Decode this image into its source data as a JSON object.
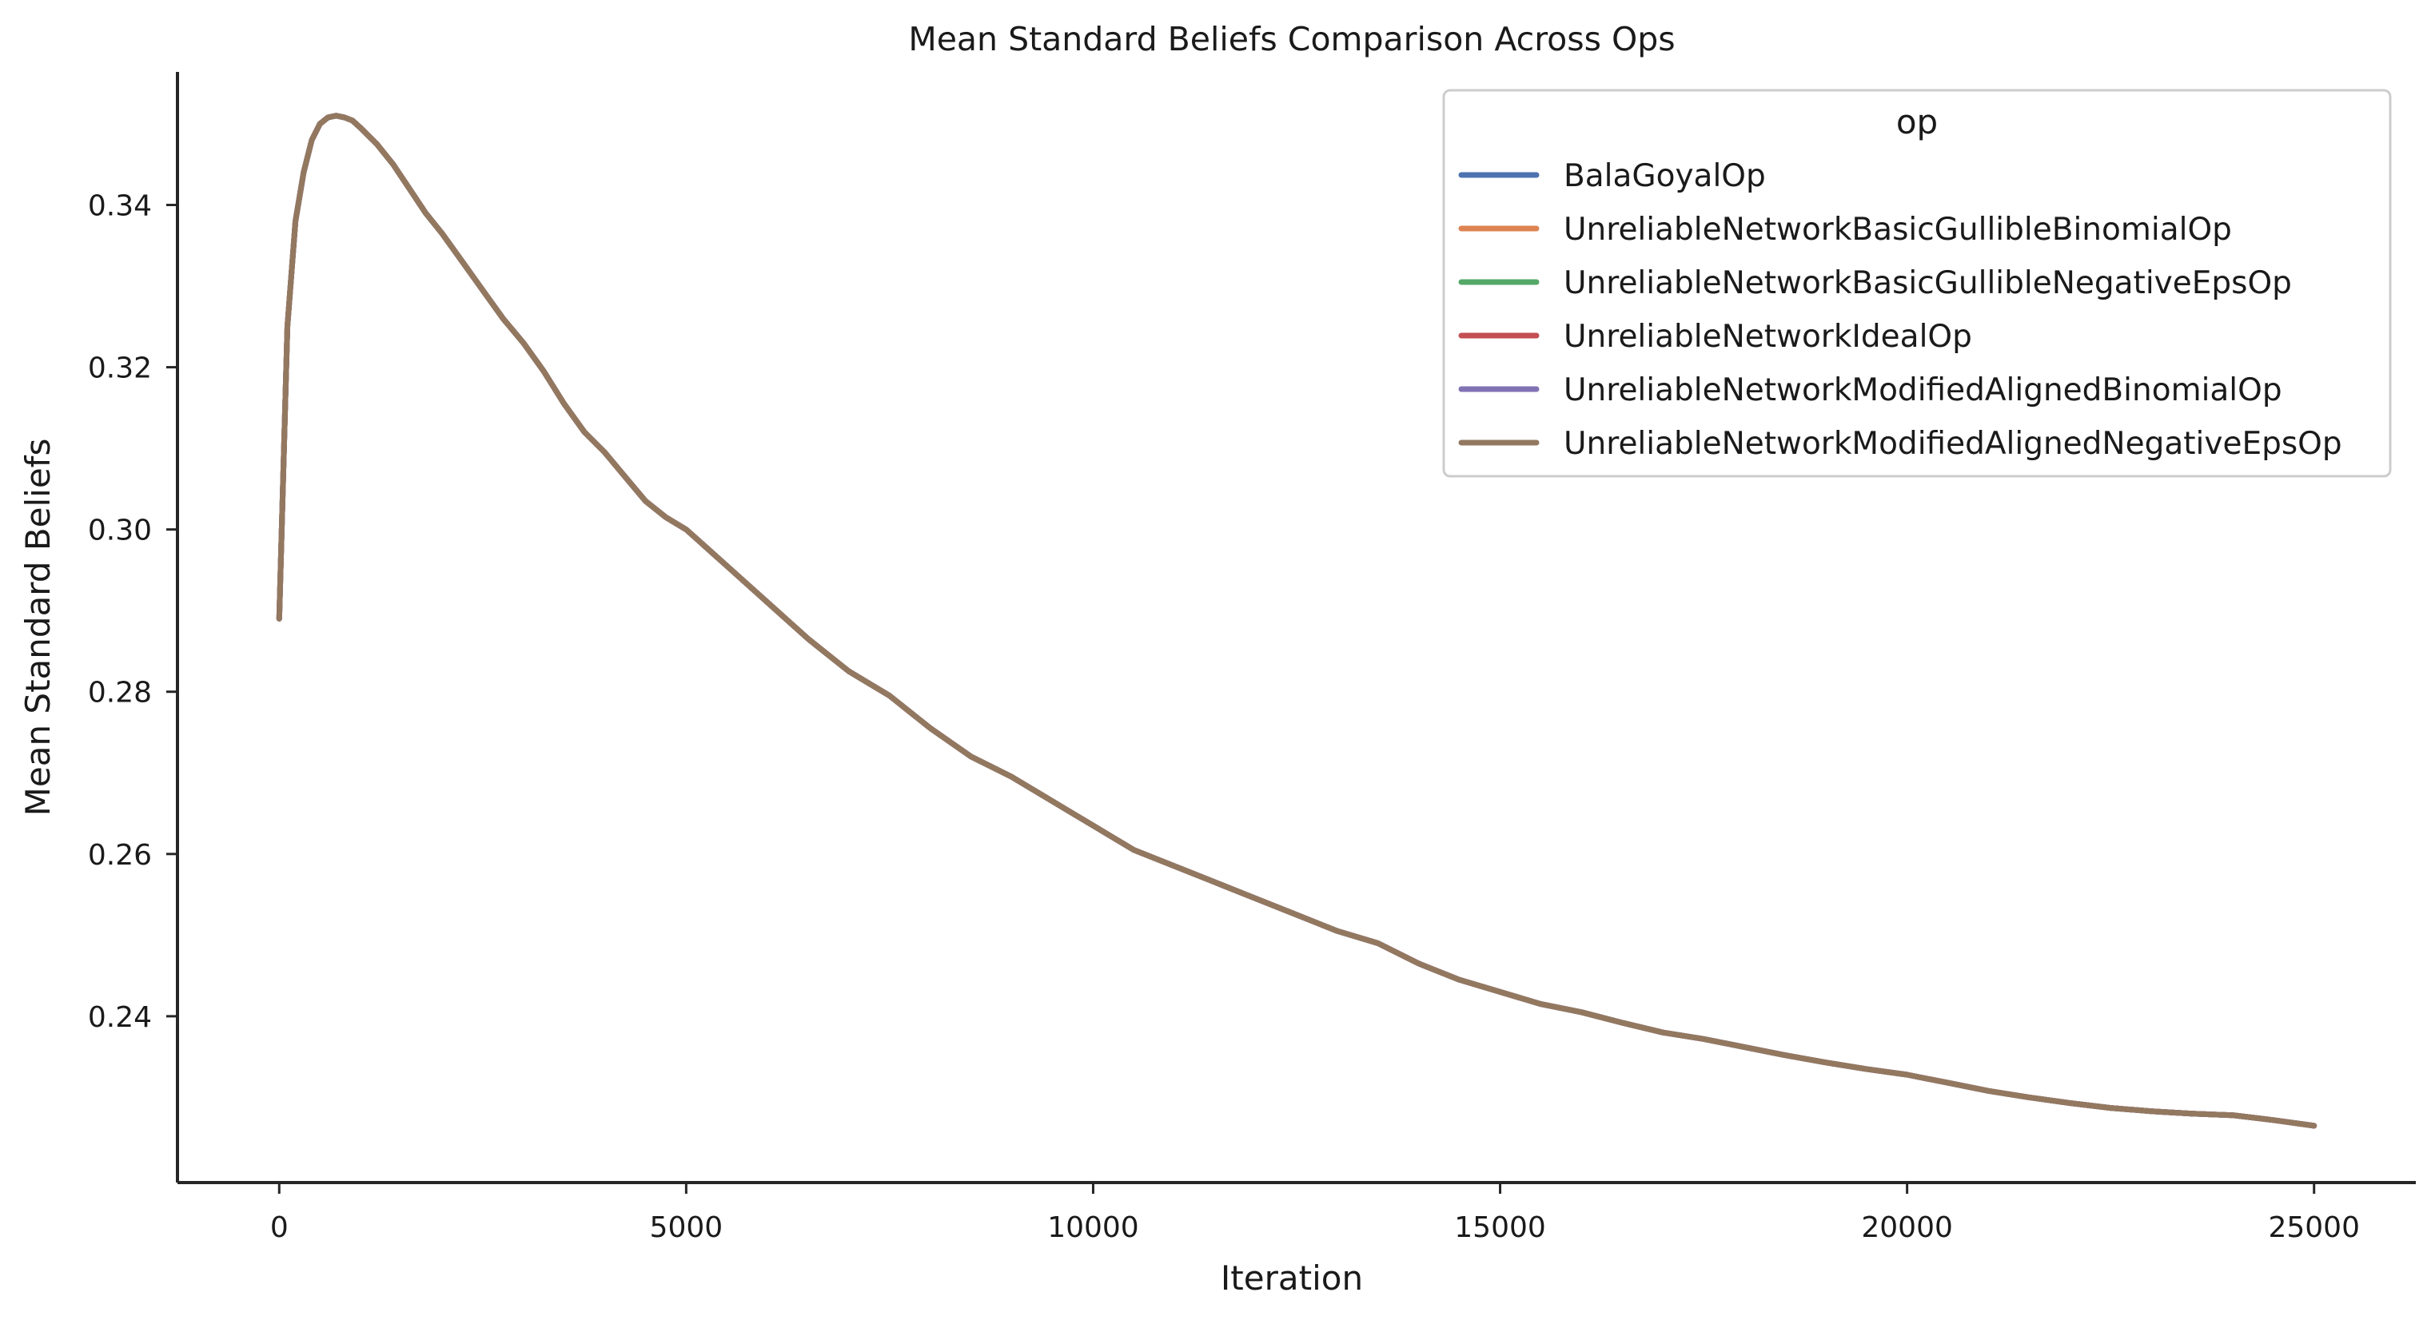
{
  "chart_data": {
    "type": "line",
    "title": "Mean Standard Beliefs Comparison Across Ops",
    "xlabel": "Iteration",
    "ylabel": "Mean Standard Beliefs",
    "xlim": [
      -1250,
      26250
    ],
    "ylim": [
      0.2195,
      0.3564
    ],
    "xticks": [
      0,
      5000,
      10000,
      15000,
      20000,
      25000
    ],
    "xtick_labels": [
      "0",
      "5000",
      "10000",
      "15000",
      "20000",
      "25000"
    ],
    "yticks": [
      0.24,
      0.26,
      0.28,
      0.3,
      0.32,
      0.34
    ],
    "ytick_labels": [
      "0.24",
      "0.26",
      "0.28",
      "0.30",
      "0.32",
      "0.34"
    ],
    "grid": false,
    "legend": {
      "title": "op",
      "placement": "top-right",
      "entries": [
        {
          "label": "BalaGoyalOp",
          "color": "#4c72b0"
        },
        {
          "label": "UnreliableNetworkBasicGullibleBinomialOp",
          "color": "#dd8452"
        },
        {
          "label": "UnreliableNetworkBasicGullibleNegativeEpsOp",
          "color": "#55a868"
        },
        {
          "label": "UnreliableNetworkIdealOp",
          "color": "#c44e52"
        },
        {
          "label": "UnreliableNetworkModifiedAlignedBinomialOp",
          "color": "#8172b3"
        },
        {
          "label": "UnreliableNetworkModifiedAlignedNegativeEpsOp",
          "color": "#937860"
        }
      ]
    },
    "note_overlap": "All six series trace the same curve; the last series is drawn on top.",
    "series": [
      {
        "name": "BalaGoyalOp",
        "color": "#4c72b0"
      },
      {
        "name": "UnreliableNetworkBasicGullibleBinomialOp",
        "color": "#dd8452"
      },
      {
        "name": "UnreliableNetworkBasicGullibleNegativeEpsOp",
        "color": "#55a868"
      },
      {
        "name": "UnreliableNetworkIdealOp",
        "color": "#c44e52"
      },
      {
        "name": "UnreliableNetworkModifiedAlignedBinomialOp",
        "color": "#8172b3"
      },
      {
        "name": "UnreliableNetworkModifiedAlignedNegativeEpsOp",
        "color": "#937860"
      }
    ],
    "x": [
      0,
      100,
      200,
      300,
      400,
      500,
      600,
      700,
      800,
      900,
      1000,
      1200,
      1400,
      1600,
      1800,
      2000,
      2250,
      2500,
      2750,
      3000,
      3250,
      3500,
      3750,
      4000,
      4250,
      4500,
      4750,
      5000,
      5500,
      6000,
      6500,
      7000,
      7500,
      8000,
      8500,
      9000,
      9500,
      10000,
      10500,
      11000,
      11500,
      12000,
      12500,
      13000,
      13500,
      14000,
      14500,
      15000,
      15500,
      16000,
      16500,
      17000,
      17500,
      18000,
      18500,
      19000,
      19500,
      20000,
      20500,
      21000,
      21500,
      22000,
      22500,
      23000,
      23500,
      24000,
      24500,
      25000
    ],
    "y": [
      0.289,
      0.325,
      0.338,
      0.344,
      0.348,
      0.35,
      0.3508,
      0.351,
      0.3508,
      0.3504,
      0.3495,
      0.3475,
      0.345,
      0.342,
      0.339,
      0.3365,
      0.333,
      0.3295,
      0.326,
      0.323,
      0.3195,
      0.3155,
      0.312,
      0.3095,
      0.3065,
      0.3035,
      0.3015,
      0.3,
      0.2955,
      0.291,
      0.2865,
      0.2825,
      0.2795,
      0.2755,
      0.272,
      0.2695,
      0.2665,
      0.2635,
      0.2605,
      0.2585,
      0.2565,
      0.2545,
      0.2525,
      0.2505,
      0.249,
      0.2465,
      0.2445,
      0.243,
      0.2415,
      0.2405,
      0.2392,
      0.238,
      0.2372,
      0.2362,
      0.2352,
      0.2343,
      0.2335,
      0.2328,
      0.2318,
      0.2308,
      0.23,
      0.2293,
      0.2287,
      0.2283,
      0.228,
      0.2278,
      0.2272,
      0.2265
    ]
  }
}
